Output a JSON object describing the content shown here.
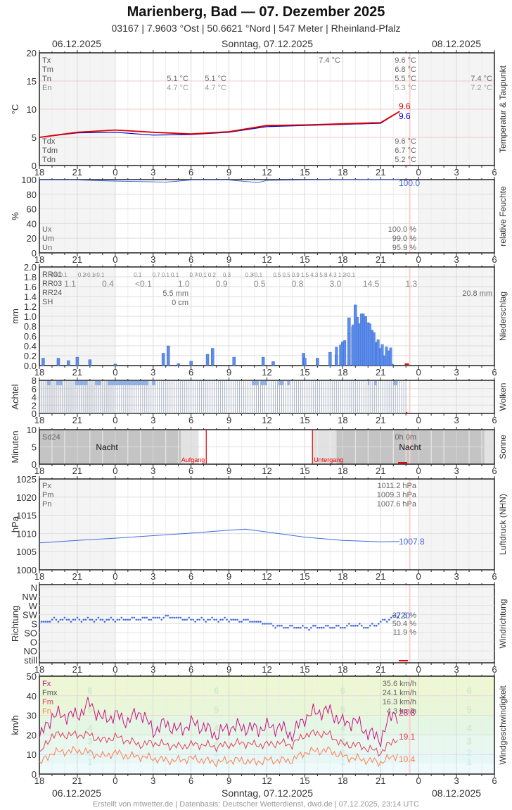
{
  "header": {
    "title": "Marienberg, Bad  —  07. Dezember 2025",
    "subtitle": "03167  |  7.9603 °Ost  |  50.6621 °Nord  |  547 Meter  |  Rheinland-Pfalz",
    "date_left": "06.12.2025",
    "date_center": "Sonntag, 07.12.2025",
    "date_right": "08.12.2025"
  },
  "footer": {
    "date_left": "06.12.2025",
    "date_center": "Sonntag, 07.12.2025",
    "date_right": "08.12.2025",
    "credits": "Erstellt von mtwetter.de | Datenbasis: Deutscher Wetterdienst, dwd.de | 07.12.2025, 23:14 UTC"
  },
  "x_ticks": [
    "18",
    "21",
    "0",
    "3",
    "6",
    "9",
    "12",
    "15",
    "18",
    "21",
    "0",
    "3",
    "6"
  ],
  "colors": {
    "temp": "#dd0000",
    "dewpoint": "#0000cc",
    "blue": "#4169e1",
    "bar": "#5b8def",
    "fx": "#c71585",
    "fm": "#e0405a",
    "fn": "#ff7f50",
    "now_line": "#ffcccc"
  },
  "chart_data": [
    {
      "id": "temperature",
      "type": "line",
      "title": "Temperatur & Taupunkt",
      "ylabel": "°C",
      "ylim": [
        0,
        20
      ],
      "yticks": [
        "0",
        "5",
        "10",
        "15",
        "20"
      ],
      "x": [
        "18",
        "21",
        "0",
        "3",
        "6",
        "9",
        "12",
        "15",
        "18",
        "21",
        "22.5"
      ],
      "series": [
        {
          "name": "Temperatur",
          "values": [
            5.0,
            5.9,
            6.3,
            5.9,
            5.6,
            6.0,
            7.1,
            7.2,
            7.4,
            7.6,
            9.6
          ]
        },
        {
          "name": "Taupunkt",
          "values": [
            5.0,
            5.8,
            5.9,
            5.4,
            5.5,
            5.9,
            6.9,
            7.1,
            7.3,
            7.5,
            9.6
          ]
        }
      ],
      "labels_left": [
        "Tx",
        "Tm",
        "Tn",
        "En"
      ],
      "labels_left_bottom": [
        "Tdx",
        "Tdm",
        "Tdn"
      ],
      "annotations": {
        "tn_night1": "5.1 °C",
        "en_night1": "4.7 °C",
        "tn_night2": "5.1 °C",
        "en_night2": "4.7 °C",
        "tx_day": "7.4 °C",
        "tx": "9.6 °C",
        "tm": "6.8 °C",
        "tn": "5.5 °C",
        "en": "5.3 °C",
        "tn_next": "7.4 °C",
        "en_next": "7.2 °C",
        "tdx": "9.6 °C",
        "tdm": "6.7 °C",
        "tdn": "5.2 °C",
        "current_temp": "9.6",
        "current_dew": "9.6"
      }
    },
    {
      "id": "humidity",
      "type": "line",
      "title": "relative Feuchte",
      "ylabel": "%",
      "ylim": [
        0,
        100
      ],
      "yticks": [
        "0",
        "20",
        "40",
        "60",
        "80",
        "100"
      ],
      "x": [
        "18",
        "21",
        "0",
        "3",
        "4",
        "6",
        "9",
        "11.3",
        "12",
        "15",
        "18",
        "21",
        "22.5"
      ],
      "values": [
        99.5,
        99.5,
        98,
        97,
        96.5,
        99.5,
        99.5,
        96,
        99,
        99.5,
        100,
        100,
        100
      ],
      "labels_left": [
        "Ux",
        "Um",
        "Un"
      ],
      "annotations": {
        "ux": "100.0 %",
        "um": "99.0 %",
        "un": "95.9 %",
        "current": "100.0"
      }
    },
    {
      "id": "precipitation",
      "type": "bar",
      "title": "Niederschlag",
      "ylabel": "mm",
      "ylim": [
        0,
        2.0
      ],
      "yticks": [
        "0.0",
        "0.2",
        "0.4",
        "0.6",
        "0.8",
        "1.0",
        "1.2",
        "1.4",
        "1.6",
        "1.8",
        "2.0"
      ],
      "labels_left": [
        "RR01",
        "RR03",
        "RR24",
        "SH"
      ],
      "rr01": [
        "0.5",
        "<0.1",
        "0.2",
        "<0.1",
        "<0.1",
        "0.1",
        "0.7",
        "0.1",
        "0.1",
        "0.7",
        "<0.1",
        "0.2",
        "0.3",
        "0.3",
        "<0.1",
        "0.5",
        "0.5",
        "0.9",
        "1.5",
        "4.3",
        "5.8",
        "4.3",
        "1.2",
        "<0.1"
      ],
      "rr03": [
        "1.1",
        "0.4",
        "<0.1",
        "1.0",
        "0.9",
        "0.5",
        "0.8",
        "3.0",
        "14.5",
        "1.3"
      ],
      "rr24": "5.5 mm",
      "rr24_next": "20.8 mm",
      "sh": "0 cm",
      "x": [
        "18.3",
        "19.5",
        "20.3",
        "21",
        "22",
        "0",
        "3.8",
        "4.2",
        "5",
        "6",
        "7.3",
        "7.7",
        "9.4",
        "11.7",
        "12.5",
        "14.9",
        "15",
        "16",
        "17",
        "17.5",
        "18",
        "18.5",
        "18.8",
        "19",
        "19.3",
        "19.6",
        "20",
        "20.3",
        "20.7",
        "21",
        "21.3",
        "21.6",
        "21.9"
      ],
      "values": [
        0.15,
        0.15,
        0.1,
        0.17,
        0.12,
        0.03,
        0.25,
        0.4,
        0.04,
        0.09,
        0.23,
        0.35,
        0.17,
        0.17,
        0.08,
        0.25,
        0.15,
        0.15,
        0.27,
        0.22,
        0.48,
        0.97,
        0.78,
        1.23,
        0.85,
        1.05,
        0.87,
        0.72,
        0.47,
        0.35,
        0.2,
        0.3,
        0.03
      ]
    },
    {
      "id": "clouds",
      "type": "bar",
      "title": "Wolken",
      "ylabel": "Achtel",
      "ylim": [
        0,
        8
      ],
      "yticks": [
        "0",
        "2",
        "4",
        "6",
        "8"
      ],
      "note": "overcast 8/8 nearly throughout, occasional 7/8"
    },
    {
      "id": "sunshine",
      "type": "area",
      "title": "Sonne",
      "ylabel": "Minuten",
      "ylim": [
        0,
        10
      ],
      "yticks": [
        "0",
        "5",
        "10"
      ],
      "labels_left": [
        "Sd24"
      ],
      "sd24": "0h 0m",
      "night_label": "Nacht",
      "sunrise_label": "Aufgang",
      "sunset_label": "Untergang",
      "sunrise_hour": 7.2,
      "sunset_hour": 15.6
    },
    {
      "id": "pressure",
      "type": "line",
      "title": "Luftdruck (NHN)",
      "ylabel": "hPa",
      "ylim": [
        1000,
        1025
      ],
      "yticks": [
        "1000",
        "1005",
        "1010",
        "1015",
        "1020",
        "1025"
      ],
      "x": [
        "18",
        "21",
        "0",
        "3",
        "6",
        "9",
        "10.3",
        "12",
        "15",
        "18",
        "21",
        "22.5"
      ],
      "values": [
        1007.4,
        1008.1,
        1008.7,
        1009.4,
        1010.1,
        1010.9,
        1011.2,
        1010.4,
        1009.0,
        1008.1,
        1007.7,
        1007.8
      ],
      "labels_left": [
        "Px",
        "Pm",
        "Pn"
      ],
      "annotations": {
        "px": "1011.2 hPa",
        "pm": "1009.3 hPa",
        "pn": "1007.6 hPa",
        "current": "1007.8"
      }
    },
    {
      "id": "wind_direction",
      "type": "scatter",
      "title": "Windrichtung",
      "ylabel": "Richtung",
      "categories": [
        "N",
        "NW",
        "W",
        "SW",
        "S",
        "SO",
        "O",
        "NO",
        "still"
      ],
      "x": [
        "18",
        "19",
        "21",
        "0",
        "3",
        "4.3",
        "6",
        "9",
        "10.5",
        "12",
        "13",
        "15",
        "18",
        "19",
        "20",
        "21",
        "22",
        "22.5"
      ],
      "values_deg": [
        180,
        200,
        200,
        200,
        205,
        215,
        200,
        200,
        195,
        180,
        165,
        160,
        165,
        175,
        165,
        185,
        210,
        220
      ],
      "annotations": {
        "pct_sw": "37.8 %",
        "pct_s": "50.4 %",
        "pct_so": "11.9 %",
        "current": "220"
      }
    },
    {
      "id": "wind_speed",
      "type": "line",
      "title": "Windgeschwindigkeit",
      "ylabel": "km/h",
      "ylim": [
        0,
        50
      ],
      "yticks": [
        "0",
        "10",
        "20",
        "30",
        "40",
        "50"
      ],
      "x": [
        "18",
        "19",
        "21",
        "22",
        "23",
        "0",
        "1",
        "2",
        "3",
        "4",
        "5",
        "6",
        "7",
        "8",
        "9",
        "10",
        "11",
        "12",
        "13",
        "14",
        "15",
        "16",
        "17",
        "18",
        "19",
        "20",
        "21",
        "22",
        "22.5"
      ],
      "series": [
        {
          "name": "Fx",
          "values": [
            18,
            30,
            30,
            36,
            28,
            30,
            27,
            32,
            22,
            26,
            22,
            26,
            24,
            20,
            24,
            24,
            23,
            24,
            24,
            20,
            29,
            32,
            32,
            26,
            27,
            21,
            18,
            32,
            28.8
          ]
        },
        {
          "name": "Fm",
          "values": [
            10,
            20,
            20,
            20,
            17,
            19,
            17,
            15,
            16,
            15,
            14,
            15,
            15,
            14,
            15,
            16,
            15,
            15,
            16,
            15,
            20,
            21,
            20,
            15,
            15,
            13,
            11,
            17,
            19.1
          ]
        },
        {
          "name": "Fn",
          "values": [
            5,
            11,
            12,
            11,
            9,
            11,
            9,
            9,
            8,
            7,
            7,
            8,
            7,
            6,
            7,
            7,
            6,
            7,
            7,
            7,
            11,
            12,
            12,
            9,
            8,
            7,
            6,
            9,
            10.4
          ]
        }
      ],
      "labels_left": [
        "Fx",
        "Fmx",
        "Fm",
        "Fn"
      ],
      "beaufort": [
        "1",
        "2",
        "3",
        "4",
        "5",
        "6"
      ],
      "annotations": {
        "fx": "35.6 km/h",
        "fmx": "24.1 km/h",
        "fm": "16.3 km/h",
        "fn": "4.3 km/h",
        "cur_fx": "28.8",
        "cur_fm": "19.1",
        "cur_fn": "10.4"
      }
    }
  ]
}
